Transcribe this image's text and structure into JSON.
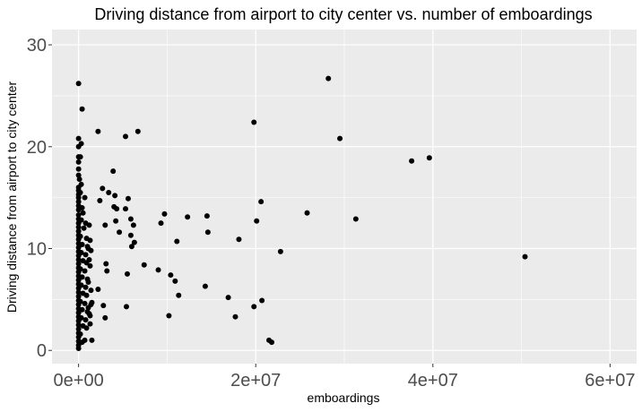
{
  "chart_data": {
    "type": "scatter",
    "title": "Driving distance from airport to city center vs. number of emboardings",
    "xlabel": "emboardings",
    "ylabel": "Driving distance from airport to city center",
    "xlim": [
      -3000000,
      63000000
    ],
    "ylim": [
      -1.3,
      31.5
    ],
    "x_ticks": [
      0,
      20000000,
      40000000,
      60000000
    ],
    "x_tick_labels": [
      "0e+00",
      "2e+07",
      "4e+07",
      "6e+07"
    ],
    "y_ticks": [
      0,
      10,
      20,
      30
    ],
    "y_tick_labels": [
      "0",
      "10",
      "20",
      "30"
    ],
    "grid": true,
    "colors": {
      "panel": "#ebebeb",
      "grid_major": "#ffffff",
      "point": "#000000"
    },
    "points": [
      [
        0,
        26.2
      ],
      [
        400000,
        23.7
      ],
      [
        300000,
        20.3
      ],
      [
        0,
        20.8
      ],
      [
        0,
        20.0
      ],
      [
        0,
        19.0
      ],
      [
        200000,
        19.0
      ],
      [
        0,
        18.5
      ],
      [
        0,
        17.8
      ],
      [
        0,
        17.2
      ],
      [
        100000,
        16.8
      ],
      [
        300000,
        16.3
      ],
      [
        0,
        16.0
      ],
      [
        0,
        15.7
      ],
      [
        0,
        15.3
      ],
      [
        0,
        15.0
      ],
      [
        0,
        14.6
      ],
      [
        0,
        14.2
      ],
      [
        0,
        13.8
      ],
      [
        0,
        13.3
      ],
      [
        0,
        12.9
      ],
      [
        0,
        12.5
      ],
      [
        0,
        12.1
      ],
      [
        0,
        11.7
      ],
      [
        0,
        11.3
      ],
      [
        0,
        10.9
      ],
      [
        0,
        10.5
      ],
      [
        0,
        10.1
      ],
      [
        0,
        9.7
      ],
      [
        0,
        9.3
      ],
      [
        0,
        8.9
      ],
      [
        0,
        8.5
      ],
      [
        0,
        8.1
      ],
      [
        0,
        7.7
      ],
      [
        0,
        7.3
      ],
      [
        0,
        6.9
      ],
      [
        0,
        6.5
      ],
      [
        0,
        6.1
      ],
      [
        0,
        5.7
      ],
      [
        0,
        5.3
      ],
      [
        0,
        4.9
      ],
      [
        0,
        4.5
      ],
      [
        0,
        4.1
      ],
      [
        0,
        3.7
      ],
      [
        0,
        3.3
      ],
      [
        0,
        2.9
      ],
      [
        0,
        2.5
      ],
      [
        0,
        2.1
      ],
      [
        0,
        1.7
      ],
      [
        0,
        1.3
      ],
      [
        0,
        0.9
      ],
      [
        0,
        0.5
      ],
      [
        0,
        0.2
      ],
      [
        200000,
        15.5
      ],
      [
        400000,
        14.0
      ],
      [
        500000,
        13.5
      ],
      [
        300000,
        12.8
      ],
      [
        600000,
        12.0
      ],
      [
        200000,
        11.2
      ],
      [
        400000,
        10.4
      ],
      [
        300000,
        9.6
      ],
      [
        500000,
        8.8
      ],
      [
        200000,
        8.0
      ],
      [
        400000,
        7.2
      ],
      [
        300000,
        6.4
      ],
      [
        500000,
        5.6
      ],
      [
        200000,
        4.8
      ],
      [
        400000,
        4.0
      ],
      [
        300000,
        3.2
      ],
      [
        500000,
        2.4
      ],
      [
        200000,
        1.6
      ],
      [
        400000,
        0.8
      ],
      [
        700000,
        15.0
      ],
      [
        800000,
        12.5
      ],
      [
        900000,
        11.0
      ],
      [
        1000000,
        10.2
      ],
      [
        800000,
        9.4
      ],
      [
        900000,
        8.6
      ],
      [
        700000,
        7.8
      ],
      [
        1000000,
        7.0
      ],
      [
        800000,
        6.2
      ],
      [
        900000,
        5.4
      ],
      [
        700000,
        4.6
      ],
      [
        1000000,
        3.8
      ],
      [
        800000,
        3.0
      ],
      [
        900000,
        2.2
      ],
      [
        700000,
        1.0
      ],
      [
        1200000,
        12.3
      ],
      [
        1300000,
        10.8
      ],
      [
        1400000,
        9.8
      ],
      [
        1200000,
        8.9
      ],
      [
        1500000,
        4.7
      ],
      [
        1400000,
        4.5
      ],
      [
        1200000,
        3.6
      ],
      [
        1300000,
        2.6
      ],
      [
        1500000,
        1.0
      ],
      [
        1100000,
        10.0
      ],
      [
        1300000,
        8.3
      ],
      [
        1100000,
        6.7
      ],
      [
        1400000,
        5.9
      ],
      [
        1100000,
        4.2
      ],
      [
        1300000,
        3.4
      ],
      [
        2200000,
        21.5
      ],
      [
        2700000,
        15.9
      ],
      [
        3400000,
        15.5
      ],
      [
        2400000,
        14.7
      ],
      [
        3000000,
        12.3
      ],
      [
        3100000,
        8.5
      ],
      [
        3200000,
        7.8
      ],
      [
        2200000,
        6.0
      ],
      [
        2800000,
        4.4
      ],
      [
        3000000,
        3.2
      ],
      [
        3900000,
        17.6
      ],
      [
        4100000,
        15.2
      ],
      [
        4300000,
        13.9
      ],
      [
        4200000,
        12.7
      ],
      [
        4600000,
        11.6
      ],
      [
        4000000,
        14.1
      ],
      [
        5300000,
        13.9
      ],
      [
        5600000,
        14.9
      ],
      [
        5500000,
        7.5
      ],
      [
        5400000,
        4.3
      ],
      [
        5300000,
        21.0
      ],
      [
        6700000,
        21.5
      ],
      [
        5900000,
        12.9
      ],
      [
        6200000,
        12.3
      ],
      [
        5900000,
        11.3
      ],
      [
        6300000,
        10.6
      ],
      [
        6000000,
        10.2
      ],
      [
        7400000,
        8.4
      ],
      [
        9000000,
        7.9
      ],
      [
        9300000,
        12.5
      ],
      [
        9700000,
        13.4
      ],
      [
        10400000,
        7.4
      ],
      [
        10900000,
        6.8
      ],
      [
        10200000,
        3.4
      ],
      [
        11100000,
        10.7
      ],
      [
        11300000,
        5.4
      ],
      [
        12300000,
        13.1
      ],
      [
        14500000,
        13.2
      ],
      [
        14600000,
        11.6
      ],
      [
        14300000,
        6.3
      ],
      [
        16900000,
        5.2
      ],
      [
        17700000,
        3.3
      ],
      [
        18100000,
        10.9
      ],
      [
        19800000,
        22.4
      ],
      [
        20100000,
        12.7
      ],
      [
        20600000,
        14.6
      ],
      [
        19800000,
        4.3
      ],
      [
        20700000,
        4.9
      ],
      [
        21500000,
        1.0
      ],
      [
        21800000,
        0.8
      ],
      [
        22800000,
        9.7
      ],
      [
        25800000,
        13.5
      ],
      [
        28200000,
        26.7
      ],
      [
        29500000,
        20.8
      ],
      [
        31300000,
        12.9
      ],
      [
        37600000,
        18.6
      ],
      [
        39600000,
        18.9
      ],
      [
        50400000,
        9.2
      ]
    ]
  }
}
